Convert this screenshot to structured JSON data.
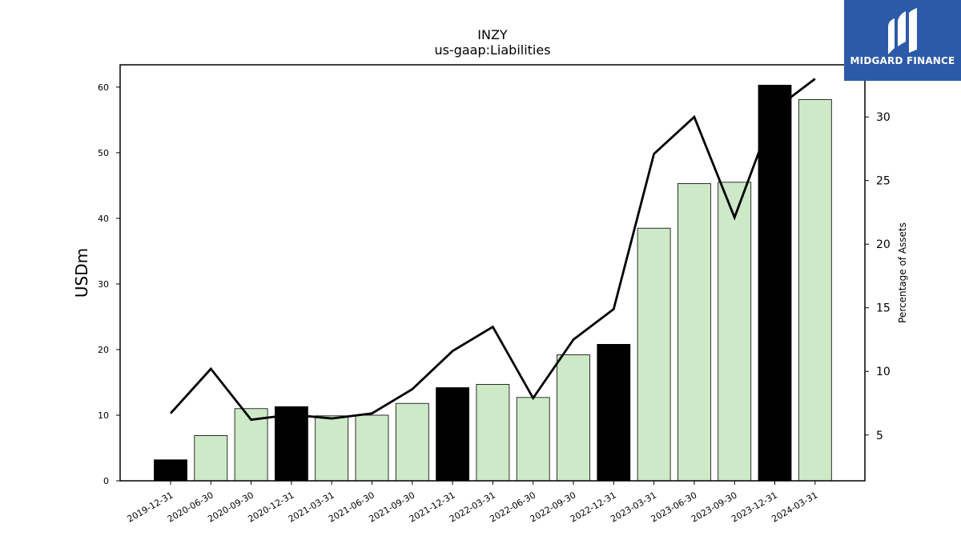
{
  "chart_data": {
    "type": "bar+line",
    "title": "INZY",
    "subtitle": "us-gaap:Liabilities",
    "ylabel": "USDm",
    "y2label": "Percentage of Assets",
    "categories": [
      "2019-12-31",
      "2020-06-30",
      "2020-09-30",
      "2020-12-31",
      "2021-03-31",
      "2021-06-30",
      "2021-09-30",
      "2021-12-31",
      "2022-03-31",
      "2022-06-30",
      "2022-09-30",
      "2022-12-31",
      "2023-03-31",
      "2023-06-30",
      "2023-09-30",
      "2023-12-31",
      "2024-03-31"
    ],
    "series": [
      {
        "kind": "bar",
        "axis": "left",
        "values": [
          3.2,
          6.9,
          11.0,
          11.3,
          9.9,
          10.0,
          11.8,
          14.2,
          14.7,
          12.7,
          19.2,
          20.8,
          38.5,
          45.3,
          45.5,
          60.3,
          58.1
        ],
        "highlight": [
          true,
          false,
          false,
          true,
          false,
          false,
          false,
          true,
          false,
          false,
          false,
          true,
          false,
          false,
          false,
          true,
          false
        ]
      },
      {
        "kind": "line",
        "axis": "right",
        "values": [
          6.7,
          10.2,
          6.2,
          6.6,
          6.3,
          6.7,
          8.6,
          11.6,
          13.5,
          7.9,
          12.5,
          14.9,
          27.1,
          30.0,
          22.1,
          30.6,
          33.0
        ]
      }
    ],
    "ylim": [
      0,
      63.4
    ],
    "yticks": [
      0,
      10,
      20,
      30,
      40,
      50,
      60
    ],
    "y2lim": [
      1.4,
      34.1
    ],
    "y2ticks": [
      5,
      10,
      15,
      20,
      25,
      30
    ],
    "colors": {
      "highlight_bar": "#000000",
      "bar": "#cde9c7",
      "bar_edge": "#000000",
      "line": "#000000"
    }
  },
  "logo": {
    "text": "MIDGARD FINANCE",
    "color": "#2b5aa8"
  }
}
